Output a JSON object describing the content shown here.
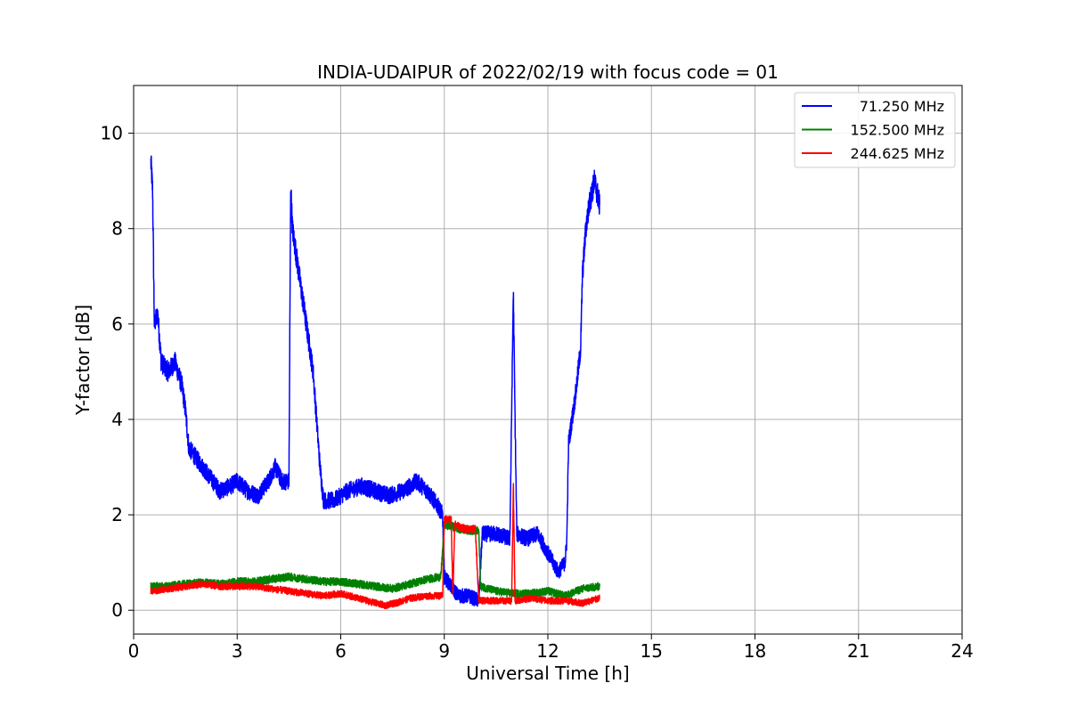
{
  "chart_data": {
    "type": "line",
    "title": "INDIA-UDAIPUR of 2022/02/19 with focus code = 01",
    "xlabel": "Universal Time [h]",
    "ylabel": "Y-factor [dB]",
    "xlim": [
      0,
      24
    ],
    "ylim": [
      -0.5,
      11
    ],
    "xticks": [
      0,
      3,
      6,
      9,
      12,
      15,
      18,
      21,
      24
    ],
    "yticks": [
      0,
      2,
      4,
      6,
      8,
      10
    ],
    "grid": true,
    "legend_position": "top-right",
    "series": [
      {
        "name": "71.250 MHz",
        "color": "#0000ff",
        "noise": 0.3,
        "points": [
          [
            0.5,
            9.4
          ],
          [
            0.55,
            8.8
          ],
          [
            0.6,
            6.0
          ],
          [
            0.7,
            6.2
          ],
          [
            0.8,
            5.2
          ],
          [
            1.0,
            5.0
          ],
          [
            1.2,
            5.2
          ],
          [
            1.4,
            4.7
          ],
          [
            1.5,
            4.2
          ],
          [
            1.6,
            3.4
          ],
          [
            1.8,
            3.2
          ],
          [
            2.0,
            3.0
          ],
          [
            2.3,
            2.7
          ],
          [
            2.5,
            2.5
          ],
          [
            2.8,
            2.6
          ],
          [
            3.0,
            2.7
          ],
          [
            3.3,
            2.5
          ],
          [
            3.6,
            2.4
          ],
          [
            3.9,
            2.7
          ],
          [
            4.1,
            3.0
          ],
          [
            4.3,
            2.7
          ],
          [
            4.5,
            2.7
          ],
          [
            4.55,
            8.9
          ],
          [
            4.6,
            8.0
          ],
          [
            4.8,
            7.0
          ],
          [
            5.0,
            6.0
          ],
          [
            5.1,
            5.5
          ],
          [
            5.2,
            5.0
          ],
          [
            5.3,
            4.0
          ],
          [
            5.4,
            3.0
          ],
          [
            5.5,
            2.3
          ],
          [
            5.8,
            2.3
          ],
          [
            6.2,
            2.5
          ],
          [
            6.6,
            2.6
          ],
          [
            7.0,
            2.5
          ],
          [
            7.4,
            2.4
          ],
          [
            7.8,
            2.5
          ],
          [
            8.2,
            2.7
          ],
          [
            8.5,
            2.5
          ],
          [
            8.8,
            2.2
          ],
          [
            8.95,
            2.0
          ],
          [
            9.0,
            0.7
          ],
          [
            9.2,
            0.5
          ],
          [
            9.4,
            0.3
          ],
          [
            9.7,
            0.3
          ],
          [
            10.0,
            0.2
          ],
          [
            10.1,
            1.6
          ],
          [
            10.5,
            1.6
          ],
          [
            10.9,
            1.5
          ],
          [
            11.0,
            6.7
          ],
          [
            11.05,
            4.0
          ],
          [
            11.1,
            1.6
          ],
          [
            11.4,
            1.5
          ],
          [
            11.7,
            1.6
          ],
          [
            12.0,
            1.2
          ],
          [
            12.3,
            0.8
          ],
          [
            12.5,
            1.0
          ],
          [
            12.55,
            1.5
          ],
          [
            12.6,
            3.5
          ],
          [
            12.8,
            4.5
          ],
          [
            12.95,
            5.5
          ],
          [
            13.0,
            7.0
          ],
          [
            13.1,
            8.0
          ],
          [
            13.2,
            8.5
          ],
          [
            13.35,
            9.0
          ],
          [
            13.5,
            8.5
          ]
        ]
      },
      {
        "name": "152.500 MHz",
        "color": "#008000",
        "noise": 0.16,
        "points": [
          [
            0.5,
            0.5
          ],
          [
            1.0,
            0.5
          ],
          [
            1.5,
            0.55
          ],
          [
            2.0,
            0.58
          ],
          [
            2.5,
            0.55
          ],
          [
            3.0,
            0.6
          ],
          [
            3.5,
            0.6
          ],
          [
            4.0,
            0.65
          ],
          [
            4.5,
            0.7
          ],
          [
            5.0,
            0.65
          ],
          [
            5.5,
            0.6
          ],
          [
            6.0,
            0.6
          ],
          [
            6.5,
            0.55
          ],
          [
            7.0,
            0.5
          ],
          [
            7.5,
            0.45
          ],
          [
            8.0,
            0.55
          ],
          [
            8.5,
            0.65
          ],
          [
            8.9,
            0.7
          ],
          [
            9.0,
            1.8
          ],
          [
            9.5,
            1.7
          ],
          [
            10.0,
            1.65
          ],
          [
            10.05,
            0.5
          ],
          [
            10.5,
            0.4
          ],
          [
            11.0,
            0.35
          ],
          [
            11.5,
            0.35
          ],
          [
            12.0,
            0.4
          ],
          [
            12.5,
            0.3
          ],
          [
            13.0,
            0.45
          ],
          [
            13.5,
            0.5
          ]
        ]
      },
      {
        "name": "244.625 MHz",
        "color": "#ff0000",
        "noise": 0.14,
        "points": [
          [
            0.5,
            0.4
          ],
          [
            1.0,
            0.45
          ],
          [
            1.5,
            0.5
          ],
          [
            2.0,
            0.55
          ],
          [
            2.5,
            0.5
          ],
          [
            3.0,
            0.5
          ],
          [
            3.5,
            0.5
          ],
          [
            4.0,
            0.45
          ],
          [
            4.5,
            0.4
          ],
          [
            5.0,
            0.35
          ],
          [
            5.5,
            0.3
          ],
          [
            6.0,
            0.35
          ],
          [
            6.5,
            0.25
          ],
          [
            7.0,
            0.15
          ],
          [
            7.3,
            0.1
          ],
          [
            7.6,
            0.15
          ],
          [
            8.0,
            0.25
          ],
          [
            8.5,
            0.3
          ],
          [
            8.95,
            0.3
          ],
          [
            9.0,
            1.9
          ],
          [
            9.2,
            1.9
          ],
          [
            9.25,
            0.3
          ],
          [
            9.3,
            1.8
          ],
          [
            9.6,
            1.7
          ],
          [
            9.9,
            1.7
          ],
          [
            10.0,
            0.2
          ],
          [
            10.5,
            0.2
          ],
          [
            10.95,
            0.2
          ],
          [
            11.0,
            2.6
          ],
          [
            11.05,
            0.2
          ],
          [
            11.5,
            0.25
          ],
          [
            12.0,
            0.2
          ],
          [
            12.5,
            0.2
          ],
          [
            13.0,
            0.15
          ],
          [
            13.5,
            0.25
          ]
        ]
      }
    ]
  }
}
